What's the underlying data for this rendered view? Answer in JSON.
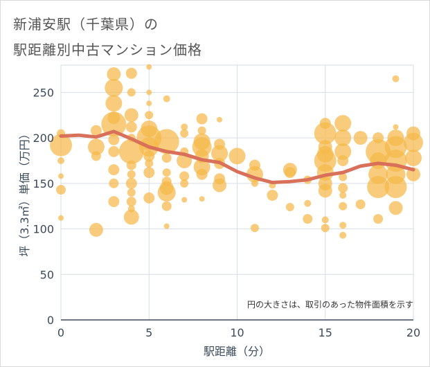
{
  "chart_data": {
    "type": "scatter",
    "title_lines": [
      "新浦安駅（千葉県）の",
      "駅距離別中古マンション価格"
    ],
    "xlabel": "駅距離（分）",
    "ylabel": "坪（3.3㎡）単価（万円）",
    "xlim": [
      0,
      20
    ],
    "ylim": [
      0,
      280
    ],
    "x_ticks": [
      0,
      5,
      10,
      15,
      20
    ],
    "y_ticks": [
      0,
      50,
      100,
      150,
      200,
      250
    ],
    "grid": true,
    "note": "円の大きさは、取引のあった物件面積を示す",
    "bubble_color": "#f5b94a",
    "line_color": "#d9705a",
    "bubbles": [
      {
        "x": 0,
        "y": 192,
        "r": 16
      },
      {
        "x": 0,
        "y": 175,
        "r": 5
      },
      {
        "x": 0,
        "y": 158,
        "r": 4
      },
      {
        "x": 0,
        "y": 143,
        "r": 7
      },
      {
        "x": 0,
        "y": 112,
        "r": 4
      },
      {
        "x": 0,
        "y": 205,
        "r": 6
      },
      {
        "x": 2,
        "y": 208,
        "r": 8
      },
      {
        "x": 2,
        "y": 190,
        "r": 12
      },
      {
        "x": 2,
        "y": 180,
        "r": 7
      },
      {
        "x": 2,
        "y": 99,
        "r": 10
      },
      {
        "x": 3,
        "y": 270,
        "r": 10
      },
      {
        "x": 3,
        "y": 255,
        "r": 13
      },
      {
        "x": 3,
        "y": 238,
        "r": 12
      },
      {
        "x": 3,
        "y": 222,
        "r": 9
      },
      {
        "x": 3,
        "y": 215,
        "r": 18
      },
      {
        "x": 3,
        "y": 198,
        "r": 8
      },
      {
        "x": 3,
        "y": 185,
        "r": 8
      },
      {
        "x": 3,
        "y": 165,
        "r": 8
      },
      {
        "x": 3,
        "y": 150,
        "r": 7
      },
      {
        "x": 3,
        "y": 130,
        "r": 8
      },
      {
        "x": 4,
        "y": 271,
        "r": 8
      },
      {
        "x": 4,
        "y": 250,
        "r": 6
      },
      {
        "x": 4,
        "y": 225,
        "r": 10
      },
      {
        "x": 4,
        "y": 212,
        "r": 8
      },
      {
        "x": 4,
        "y": 200,
        "r": 6
      },
      {
        "x": 4,
        "y": 185,
        "r": 18
      },
      {
        "x": 4,
        "y": 170,
        "r": 7
      },
      {
        "x": 4,
        "y": 160,
        "r": 6
      },
      {
        "x": 4,
        "y": 150,
        "r": 8
      },
      {
        "x": 4,
        "y": 140,
        "r": 6
      },
      {
        "x": 4,
        "y": 130,
        "r": 7
      },
      {
        "x": 4,
        "y": 122,
        "r": 5
      },
      {
        "x": 4,
        "y": 113,
        "r": 11
      },
      {
        "x": 5,
        "y": 278,
        "r": 4
      },
      {
        "x": 5,
        "y": 250,
        "r": 4
      },
      {
        "x": 5,
        "y": 238,
        "r": 4
      },
      {
        "x": 5,
        "y": 225,
        "r": 6
      },
      {
        "x": 5,
        "y": 210,
        "r": 12
      },
      {
        "x": 5,
        "y": 200,
        "r": 18
      },
      {
        "x": 5,
        "y": 190,
        "r": 14
      },
      {
        "x": 5,
        "y": 180,
        "r": 8
      },
      {
        "x": 5,
        "y": 172,
        "r": 6
      },
      {
        "x": 5,
        "y": 162,
        "r": 8
      },
      {
        "x": 5,
        "y": 134,
        "r": 8
      },
      {
        "x": 6,
        "y": 243,
        "r": 5
      },
      {
        "x": 6,
        "y": 196,
        "r": 18
      },
      {
        "x": 6,
        "y": 178,
        "r": 7
      },
      {
        "x": 6,
        "y": 162,
        "r": 6
      },
      {
        "x": 6,
        "y": 152,
        "r": 7
      },
      {
        "x": 6,
        "y": 145,
        "r": 10
      },
      {
        "x": 6,
        "y": 140,
        "r": 13
      },
      {
        "x": 6,
        "y": 125,
        "r": 7
      },
      {
        "x": 6,
        "y": 103,
        "r": 4
      },
      {
        "x": 7,
        "y": 212,
        "r": 5
      },
      {
        "x": 7,
        "y": 205,
        "r": 6
      },
      {
        "x": 7,
        "y": 185,
        "r": 6
      },
      {
        "x": 7,
        "y": 175,
        "r": 11
      },
      {
        "x": 7,
        "y": 158,
        "r": 7
      },
      {
        "x": 7,
        "y": 150,
        "r": 6
      },
      {
        "x": 7,
        "y": 132,
        "r": 4
      },
      {
        "x": 8,
        "y": 221,
        "r": 8
      },
      {
        "x": 8,
        "y": 208,
        "r": 6
      },
      {
        "x": 8,
        "y": 196,
        "r": 12
      },
      {
        "x": 8,
        "y": 190,
        "r": 14
      },
      {
        "x": 8,
        "y": 180,
        "r": 10
      },
      {
        "x": 8,
        "y": 168,
        "r": 12
      },
      {
        "x": 8,
        "y": 160,
        "r": 8
      },
      {
        "x": 8,
        "y": 133,
        "r": 4
      },
      {
        "x": 9,
        "y": 220,
        "r": 4
      },
      {
        "x": 9,
        "y": 193,
        "r": 8
      },
      {
        "x": 9,
        "y": 183,
        "r": 12
      },
      {
        "x": 9,
        "y": 172,
        "r": 8
      },
      {
        "x": 9,
        "y": 155,
        "r": 8
      },
      {
        "x": 9,
        "y": 148,
        "r": 10
      },
      {
        "x": 10,
        "y": 180,
        "r": 12
      },
      {
        "x": 11,
        "y": 170,
        "r": 8
      },
      {
        "x": 11,
        "y": 160,
        "r": 12
      },
      {
        "x": 11,
        "y": 150,
        "r": 5
      },
      {
        "x": 11,
        "y": 101,
        "r": 6
      },
      {
        "x": 12,
        "y": 148,
        "r": 5
      },
      {
        "x": 12,
        "y": 137,
        "r": 8
      },
      {
        "x": 13,
        "y": 165,
        "r": 10
      },
      {
        "x": 13,
        "y": 162,
        "r": 8
      },
      {
        "x": 13,
        "y": 124,
        "r": 6
      },
      {
        "x": 14,
        "y": 154,
        "r": 6
      },
      {
        "x": 14,
        "y": 128,
        "r": 5
      },
      {
        "x": 14,
        "y": 111,
        "r": 7
      },
      {
        "x": 15,
        "y": 216,
        "r": 8
      },
      {
        "x": 15,
        "y": 205,
        "r": 16
      },
      {
        "x": 15,
        "y": 190,
        "r": 10
      },
      {
        "x": 15,
        "y": 182,
        "r": 12
      },
      {
        "x": 15,
        "y": 175,
        "r": 16
      },
      {
        "x": 15,
        "y": 162,
        "r": 12
      },
      {
        "x": 15,
        "y": 150,
        "r": 10
      },
      {
        "x": 15,
        "y": 142,
        "r": 10
      },
      {
        "x": 15,
        "y": 110,
        "r": 5
      },
      {
        "x": 15,
        "y": 101,
        "r": 6
      },
      {
        "x": 16,
        "y": 216,
        "r": 12
      },
      {
        "x": 16,
        "y": 200,
        "r": 12
      },
      {
        "x": 16,
        "y": 185,
        "r": 12
      },
      {
        "x": 16,
        "y": 175,
        "r": 8
      },
      {
        "x": 16,
        "y": 157,
        "r": 6
      },
      {
        "x": 16,
        "y": 145,
        "r": 7
      },
      {
        "x": 16,
        "y": 137,
        "r": 5
      },
      {
        "x": 16,
        "y": 125,
        "r": 6
      },
      {
        "x": 16,
        "y": 104,
        "r": 5
      },
      {
        "x": 16,
        "y": 93,
        "r": 5
      },
      {
        "x": 17,
        "y": 200,
        "r": 10
      },
      {
        "x": 17,
        "y": 127,
        "r": 7
      },
      {
        "x": 18,
        "y": 200,
        "r": 8
      },
      {
        "x": 18,
        "y": 185,
        "r": 18
      },
      {
        "x": 18,
        "y": 175,
        "r": 12
      },
      {
        "x": 18,
        "y": 160,
        "r": 14
      },
      {
        "x": 18,
        "y": 146,
        "r": 16
      },
      {
        "x": 18,
        "y": 111,
        "r": 7
      },
      {
        "x": 19,
        "y": 265,
        "r": 5
      },
      {
        "x": 19,
        "y": 212,
        "r": 4
      },
      {
        "x": 19,
        "y": 200,
        "r": 12
      },
      {
        "x": 19,
        "y": 190,
        "r": 16
      },
      {
        "x": 19,
        "y": 175,
        "r": 16
      },
      {
        "x": 19,
        "y": 160,
        "r": 14
      },
      {
        "x": 19,
        "y": 146,
        "r": 16
      },
      {
        "x": 19,
        "y": 123,
        "r": 10
      },
      {
        "x": 20,
        "y": 205,
        "r": 10
      },
      {
        "x": 20,
        "y": 195,
        "r": 14
      },
      {
        "x": 20,
        "y": 178,
        "r": 12
      },
      {
        "x": 20,
        "y": 160,
        "r": 10
      }
    ],
    "trend": [
      {
        "x": 0,
        "y": 202
      },
      {
        "x": 1,
        "y": 203
      },
      {
        "x": 2,
        "y": 201
      },
      {
        "x": 3,
        "y": 207
      },
      {
        "x": 4,
        "y": 199
      },
      {
        "x": 5,
        "y": 190
      },
      {
        "x": 6,
        "y": 185
      },
      {
        "x": 7,
        "y": 182
      },
      {
        "x": 8,
        "y": 176
      },
      {
        "x": 9,
        "y": 173
      },
      {
        "x": 10,
        "y": 163
      },
      {
        "x": 11,
        "y": 156
      },
      {
        "x": 12,
        "y": 151
      },
      {
        "x": 13,
        "y": 152
      },
      {
        "x": 14,
        "y": 154
      },
      {
        "x": 15,
        "y": 159
      },
      {
        "x": 16,
        "y": 162
      },
      {
        "x": 17,
        "y": 169
      },
      {
        "x": 18,
        "y": 172
      },
      {
        "x": 19,
        "y": 170
      },
      {
        "x": 20,
        "y": 165
      }
    ]
  }
}
